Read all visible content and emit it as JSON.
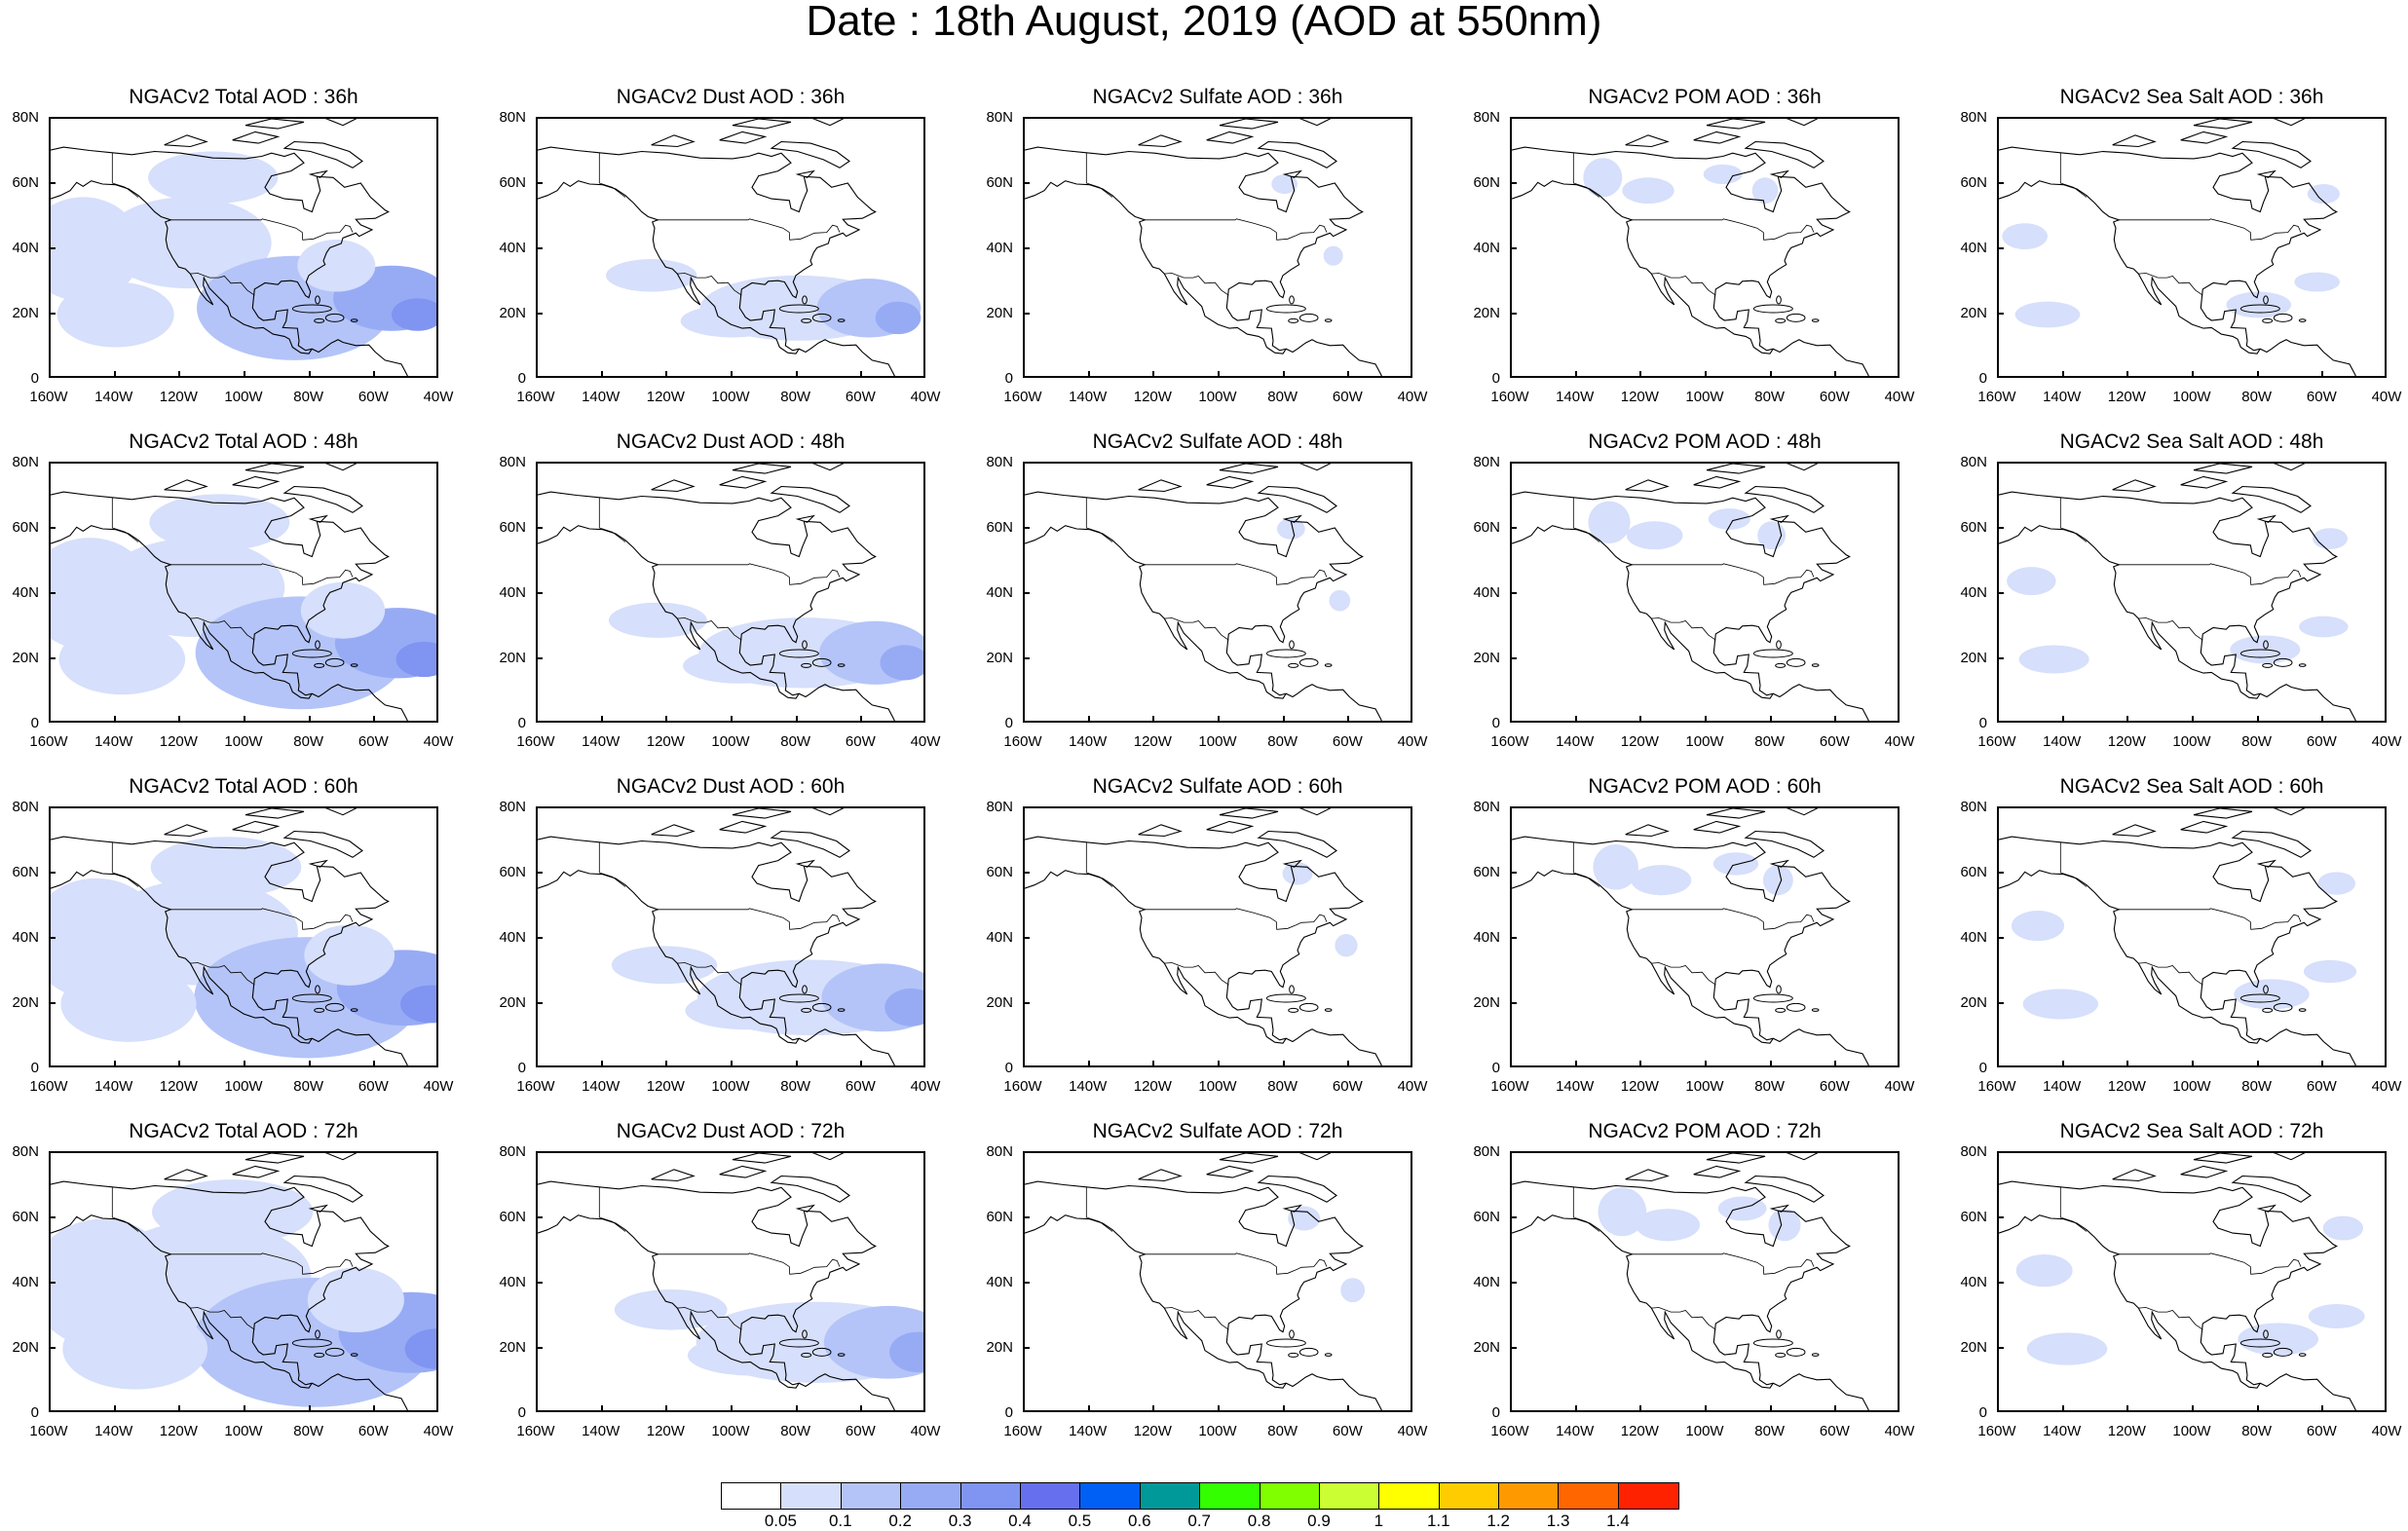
{
  "title": "Date : 18th August, 2019 (AOD at 550nm)",
  "lat_labels": [
    "80N",
    "60N",
    "40N",
    "20N",
    "0"
  ],
  "lon_labels": [
    "160W",
    "140W",
    "120W",
    "100W",
    "80W",
    "60W",
    "40W"
  ],
  "rows": [
    {
      "hour": "36h",
      "panels": [
        {
          "title": "NGACv2 Total AOD : 36h",
          "species": "total"
        },
        {
          "title": "NGACv2 Dust AOD : 36h",
          "species": "dust"
        },
        {
          "title": "NGACv2 Sulfate AOD : 36h",
          "species": "sulfate"
        },
        {
          "title": "NGACv2 POM AOD : 36h",
          "species": "pom"
        },
        {
          "title": "NGACv2 Sea Salt AOD : 36h",
          "species": "seasalt"
        }
      ]
    },
    {
      "hour": "48h",
      "panels": [
        {
          "title": "NGACv2 Total AOD : 48h",
          "species": "total"
        },
        {
          "title": "NGACv2 Dust AOD : 48h",
          "species": "dust"
        },
        {
          "title": "NGACv2 Sulfate AOD : 48h",
          "species": "sulfate"
        },
        {
          "title": "NGACv2 POM AOD : 48h",
          "species": "pom"
        },
        {
          "title": "NGACv2 Sea Salt AOD : 48h",
          "species": "seasalt"
        }
      ]
    },
    {
      "hour": "60h",
      "panels": [
        {
          "title": "NGACv2 Total AOD : 60h",
          "species": "total"
        },
        {
          "title": "NGACv2 Dust AOD : 60h",
          "species": "dust"
        },
        {
          "title": "NGACv2 Sulfate AOD : 60h",
          "species": "sulfate"
        },
        {
          "title": "NGACv2 POM AOD : 60h",
          "species": "pom"
        },
        {
          "title": "NGACv2 Sea Salt AOD : 60h",
          "species": "seasalt"
        }
      ]
    },
    {
      "hour": "72h",
      "panels": [
        {
          "title": "NGACv2 Total AOD : 72h",
          "species": "total"
        },
        {
          "title": "NGACv2 Dust AOD : 72h",
          "species": "dust"
        },
        {
          "title": "NGACv2 Sulfate AOD : 72h",
          "species": "sulfate"
        },
        {
          "title": "NGACv2 POM AOD : 72h",
          "species": "pom"
        },
        {
          "title": "NGACv2 Sea Salt  AOD : 72h",
          "species": "seasalt"
        }
      ]
    }
  ],
  "colorbar": {
    "labels": [
      "0.05",
      "0.1",
      "0.2",
      "0.3",
      "0.4",
      "0.5",
      "0.6",
      "0.7",
      "0.8",
      "0.9",
      "1",
      "1.1",
      "1.2",
      "1.3",
      "1.4"
    ],
    "colors": [
      "#ffffff",
      "#d6dffb",
      "#b4c4f8",
      "#97abf5",
      "#8094f2",
      "#6670ee",
      "#005ff5",
      "#009999",
      "#33ff00",
      "#80ff00",
      "#ccff33",
      "#ffff00",
      "#ffcc00",
      "#ff9900",
      "#ff6600",
      "#ff2200"
    ]
  },
  "map_extent": {
    "lon": [
      -160,
      -40
    ],
    "lat": [
      0,
      80
    ]
  }
}
